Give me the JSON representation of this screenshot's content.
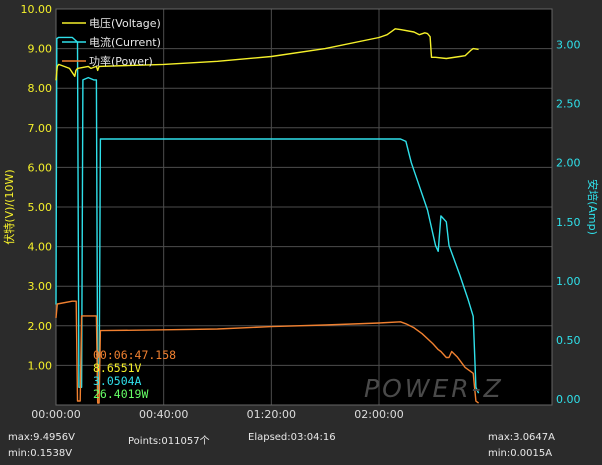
{
  "chart_data": {
    "type": "line",
    "x_ticks": [
      "00:00:00",
      "00:40:00",
      "01:20:00",
      "02:00:00"
    ],
    "x_range_minutes": [
      0,
      184.27
    ],
    "y_left": {
      "label": "伏特(V)/(10W)",
      "range": [
        0,
        10
      ],
      "ticks": [
        "1.00",
        "2.00",
        "3.00",
        "4.00",
        "5.00",
        "6.00",
        "7.00",
        "8.00",
        "9.00",
        "10.00"
      ]
    },
    "y_right": {
      "label": "安培(Amp)",
      "range": [
        -0.05,
        3.3
      ],
      "ticks": [
        "0.00",
        "0.50",
        "1.00",
        "1.50",
        "2.00",
        "2.50",
        "3.00"
      ]
    },
    "legend_position": "top-left",
    "series": [
      {
        "name": "电压(Voltage)",
        "color": "#f5f02a",
        "axis": "left",
        "points": [
          [
            0,
            8.2
          ],
          [
            0.5,
            8.55
          ],
          [
            1,
            8.6
          ],
          [
            5,
            8.5
          ],
          [
            7,
            8.3
          ],
          [
            7.4,
            8.45
          ],
          [
            8,
            8.5
          ],
          [
            12,
            8.55
          ],
          [
            13,
            8.5
          ],
          [
            15,
            8.55
          ],
          [
            15.5,
            8.45
          ],
          [
            16,
            8.55
          ],
          [
            40,
            8.6
          ],
          [
            60,
            8.68
          ],
          [
            80,
            8.8
          ],
          [
            100,
            9.0
          ],
          [
            120,
            9.28
          ],
          [
            123,
            9.35
          ],
          [
            125,
            9.45
          ],
          [
            126,
            9.5
          ],
          [
            128,
            9.48
          ],
          [
            133,
            9.42
          ],
          [
            135,
            9.35
          ],
          [
            137,
            9.4
          ],
          [
            138,
            9.38
          ],
          [
            139,
            9.3
          ],
          [
            139.5,
            8.78
          ],
          [
            141,
            8.78
          ],
          [
            145,
            8.75
          ],
          [
            150,
            8.8
          ],
          [
            152,
            8.82
          ],
          [
            154,
            8.95
          ],
          [
            155,
            9.0
          ],
          [
            157,
            8.98
          ]
        ]
      },
      {
        "name": "电流(Current)",
        "color": "#2fe0ea",
        "axis": "right",
        "points": [
          [
            0,
            0.8
          ],
          [
            0.3,
            3.05
          ],
          [
            1,
            3.06
          ],
          [
            6,
            3.06
          ],
          [
            8,
            3.02
          ],
          [
            8.5,
            0.1
          ],
          [
            9.5,
            0.1
          ],
          [
            10,
            2.7
          ],
          [
            12,
            2.72
          ],
          [
            14,
            2.7
          ],
          [
            15,
            2.7
          ],
          [
            15.5,
            0.05
          ],
          [
            16,
            0.05
          ],
          [
            16.5,
            2.2
          ],
          [
            20,
            2.2
          ],
          [
            40,
            2.2
          ],
          [
            60,
            2.2
          ],
          [
            80,
            2.2
          ],
          [
            100,
            2.2
          ],
          [
            120,
            2.2
          ],
          [
            128,
            2.2
          ],
          [
            130,
            2.18
          ],
          [
            132,
            2.0
          ],
          [
            135,
            1.8
          ],
          [
            138,
            1.6
          ],
          [
            141,
            1.3
          ],
          [
            142,
            1.25
          ],
          [
            143,
            1.55
          ],
          [
            145,
            1.5
          ],
          [
            146,
            1.3
          ],
          [
            150,
            1.05
          ],
          [
            153,
            0.85
          ],
          [
            155,
            0.7
          ],
          [
            156,
            0.1
          ],
          [
            157,
            0.05
          ]
        ]
      },
      {
        "name": "功率(Power)",
        "color": "#f08030",
        "axis": "left",
        "points": [
          [
            0,
            2.2
          ],
          [
            0.5,
            2.55
          ],
          [
            6,
            2.62
          ],
          [
            7.5,
            2.62
          ],
          [
            8,
            0.1
          ],
          [
            9,
            0.1
          ],
          [
            9.5,
            2.25
          ],
          [
            14,
            2.25
          ],
          [
            15,
            2.25
          ],
          [
            15.5,
            0.05
          ],
          [
            16,
            0.05
          ],
          [
            16.5,
            1.88
          ],
          [
            40,
            1.9
          ],
          [
            60,
            1.92
          ],
          [
            80,
            1.98
          ],
          [
            100,
            2.02
          ],
          [
            120,
            2.07
          ],
          [
            128,
            2.1
          ],
          [
            130,
            2.05
          ],
          [
            133,
            1.95
          ],
          [
            136,
            1.8
          ],
          [
            140,
            1.55
          ],
          [
            142,
            1.4
          ],
          [
            143,
            1.35
          ],
          [
            145,
            1.2
          ],
          [
            146,
            1.2
          ],
          [
            147,
            1.35
          ],
          [
            149,
            1.22
          ],
          [
            152,
            0.95
          ],
          [
            155,
            0.8
          ],
          [
            156,
            0.1
          ],
          [
            157,
            0.05
          ]
        ]
      }
    ],
    "cursor": {
      "time": "00:06:47.158",
      "voltage": "8.6551V",
      "current": "3.0504A",
      "power": "26.4019W"
    }
  },
  "stats": {
    "max_v": "max:9.4956V",
    "min_v": "min:0.1538V",
    "points": "Points:011057个",
    "elapsed": "Elapsed:03:04:16",
    "max_a": "max:3.0647A",
    "min_a": "min:0.0015A"
  },
  "watermark": "POWER-Z",
  "colors": {
    "background": "#2b2b2b",
    "plot_bg": "#000000",
    "grid": "#555555"
  }
}
